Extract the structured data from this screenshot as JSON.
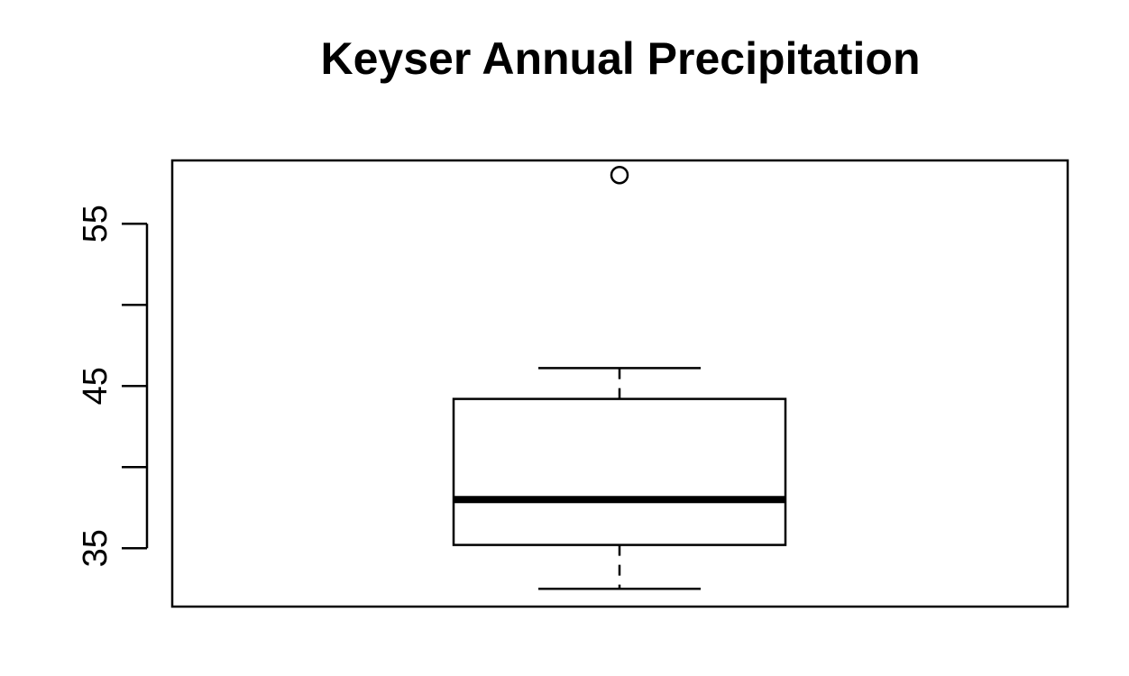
{
  "chart_data": {
    "type": "boxplot",
    "title": "Keyser Annual Precipitation",
    "xlabel": "",
    "ylabel": "",
    "ylim": [
      31.4,
      58.9
    ],
    "yticks": [
      35,
      40,
      45,
      50,
      55
    ],
    "ytick_labels": [
      "35",
      "",
      "45",
      "",
      "55"
    ],
    "series": [
      {
        "stats": {
          "whisker_low": 32.5,
          "q1": 35.2,
          "median": 38.0,
          "q3": 44.2,
          "whisker_high": 46.1
        },
        "outliers": [
          58.0
        ]
      }
    ],
    "grid": false,
    "colors": {
      "box": "#000000",
      "median": "#000000",
      "background": "#ffffff"
    }
  }
}
